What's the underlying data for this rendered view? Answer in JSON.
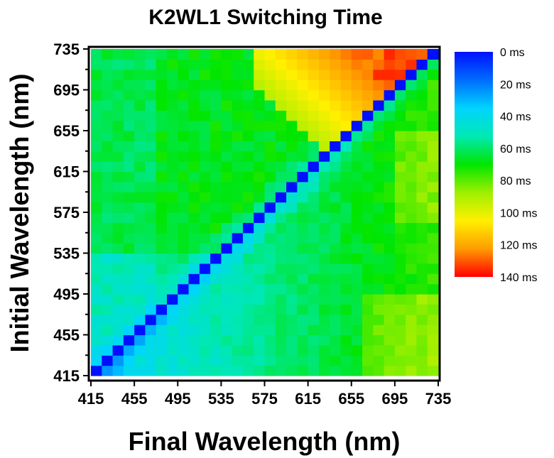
{
  "chart_data": {
    "type": "heatmap",
    "title": "K2WL1 Switching Time",
    "xlabel": "Final Wavelength (nm)",
    "ylabel": "Initial Wavelength (nm)",
    "x": {
      "min": 415,
      "max": 735,
      "ticks": [
        415,
        455,
        495,
        535,
        575,
        615,
        655,
        695,
        735
      ]
    },
    "y": {
      "min": 415,
      "max": 735,
      "ticks": [
        415,
        455,
        495,
        535,
        575,
        615,
        655,
        695,
        735
      ]
    },
    "grid_size": 32,
    "colorbar": {
      "min": 0,
      "max": 140,
      "labels": [
        "0 ms",
        "20 ms",
        "40 ms",
        "60 ms",
        "80 ms",
        "100 ms",
        "120 ms",
        "140 ms"
      ],
      "colors": [
        "#0010ff",
        "#006cff",
        "#00d4ff",
        "#00e8b4",
        "#00e600",
        "#9eef00",
        "#fff000",
        "#ff9c00",
        "#ff0000"
      ]
    },
    "diagonal_value": 0,
    "regions": {
      "lower_triangle_base_ms": 38,
      "upper_triangle_base_ms": 68,
      "hot_corner_ms": 130
    }
  }
}
